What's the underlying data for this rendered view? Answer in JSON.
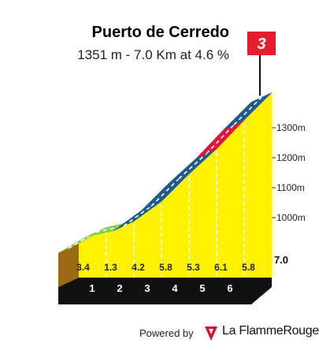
{
  "header": {
    "title": "Puerto de Cerredo",
    "subtitle": "1351 m - 7.0 Km at 4.6 %"
  },
  "category_flag": {
    "label": "3",
    "color": "#e41e2e"
  },
  "chart_data": {
    "type": "area",
    "title": "Puerto de Cerredo",
    "subtitle": "1351 m - 7.0 Km at 4.6 %",
    "x_unit": "km",
    "y_unit": "m",
    "xlim": [
      0,
      7.0
    ],
    "ylim": [
      1000,
      1351
    ],
    "distance_ticks": [
      "1",
      "2",
      "3",
      "4",
      "5",
      "6",
      "7.0"
    ],
    "altitude_ticks": [
      "1000m",
      "1100m",
      "1200m",
      "1300m"
    ],
    "segments": [
      {
        "from_km": 0,
        "to_km": 1,
        "gradient": 3.4,
        "color": "#7ed23a"
      },
      {
        "from_km": 1,
        "to_km": 2,
        "gradient": 1.3,
        "color": "#7ed23a"
      },
      {
        "from_km": 2,
        "to_km": 3,
        "gradient": 4.2,
        "color": "#1f5c8c"
      },
      {
        "from_km": 3,
        "to_km": 4,
        "gradient": 5.8,
        "color": "#1f5c8c"
      },
      {
        "from_km": 4,
        "to_km": 5,
        "gradient": 5.3,
        "color": "#1f5c8c"
      },
      {
        "from_km": 5,
        "to_km": 6,
        "gradient": 6.1,
        "color": "#e0173a"
      },
      {
        "from_km": 6,
        "to_km": 7,
        "gradient": 5.8,
        "color": "#1f5c8c"
      }
    ],
    "gradient_labels": [
      "3.4",
      "1.3",
      "4.2",
      "5.8",
      "5.3",
      "6.1",
      "5.8"
    ],
    "fill_color": "#fff200"
  },
  "footer": {
    "powered_by": "Powered by",
    "brand": "La FlammeRouge"
  }
}
